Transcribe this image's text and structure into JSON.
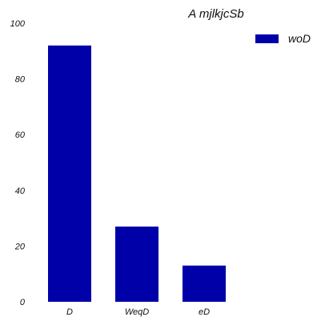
{
  "chart_data": {
    "type": "bar",
    "title": "A mjlkjcSb",
    "categories": [
      "D",
      "WeqD",
      "eD"
    ],
    "series": [
      {
        "name": "woD",
        "values": [
          92,
          27,
          13
        ],
        "color": "#0000a8"
      }
    ],
    "xlabel": "",
    "ylabel": "",
    "ylim": [
      0,
      100
    ],
    "yticks": [
      0,
      20,
      40,
      60,
      80,
      100
    ],
    "grid": false,
    "legend_position": "top-right"
  }
}
